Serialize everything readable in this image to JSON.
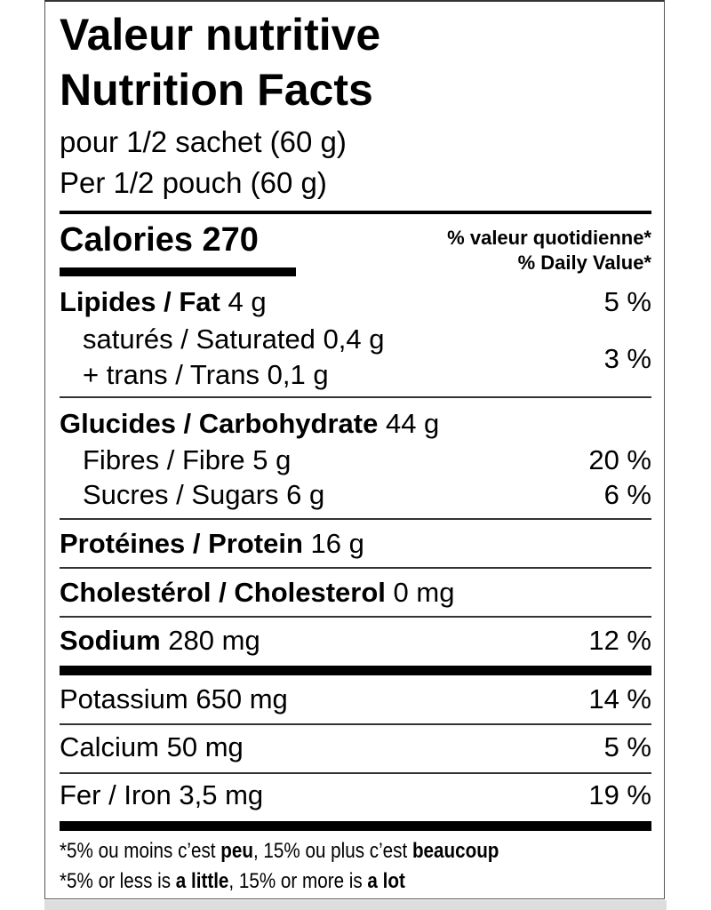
{
  "title_fr": "Valeur nutritive",
  "title_en": "Nutrition Facts",
  "serving_fr": "pour 1/2 sachet (60 g)",
  "serving_en": "Per 1/2 pouch (60 g)",
  "calories_label": "Calories",
  "calories_value": "270",
  "dv_header_fr": "% valeur quotidienne*",
  "dv_header_en": "% Daily Value*",
  "nutrients": {
    "fat": {
      "label": "Lipides / Fat",
      "amount": "4 g",
      "dv": "5 %"
    },
    "saturated": {
      "label": "saturés / Saturated",
      "amount": "0,4 g"
    },
    "trans": {
      "label": "+ trans / Trans",
      "amount": "0,1 g"
    },
    "sat_trans_dv": "3 %",
    "carb": {
      "label": "Glucides / Carbohydrate",
      "amount": "44 g"
    },
    "fibre": {
      "label": "Fibres / Fibre",
      "amount": "5 g",
      "dv": "20 %"
    },
    "sugars": {
      "label": "Sucres / Sugars",
      "amount": "6 g",
      "dv": "6 %"
    },
    "protein": {
      "label": "Protéines / Protein",
      "amount": "16 g"
    },
    "cholesterol": {
      "label": "Cholestérol / Cholesterol",
      "amount": "0 mg"
    },
    "sodium": {
      "label": "Sodium",
      "amount": "280 mg",
      "dv": "12 %"
    },
    "potassium": {
      "label": "Potassium",
      "amount": "650 mg",
      "dv": "14 %"
    },
    "calcium": {
      "label": "Calcium",
      "amount": "50 mg",
      "dv": "5 %"
    },
    "iron": {
      "label": "Fer / Iron",
      "amount": "3,5 mg",
      "dv": "19 %"
    }
  },
  "footnote_fr": {
    "a": "*5% ou moins c’est ",
    "b": "peu",
    "c": ", 15% ou plus c’est ",
    "d": "beaucoup"
  },
  "footnote_en": {
    "a": "*5% or less is ",
    "b": "a little",
    "c": ", 15% or more is ",
    "d": "a lot"
  }
}
